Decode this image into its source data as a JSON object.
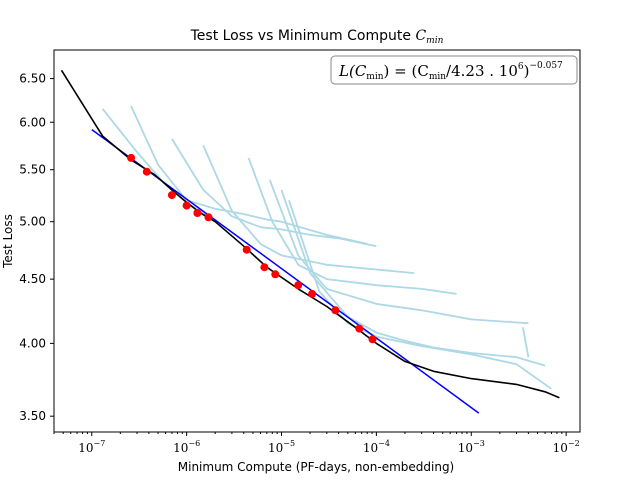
{
  "chart_data": {
    "type": "line",
    "title": "Test Loss vs Minimum Compute",
    "title_symbol": {
      "main": "C",
      "sub": "min"
    },
    "xlabel": "Minimum Compute (PF-days, non-embedding)",
    "ylabel": "Test Loss",
    "x_scale": "log",
    "y_scale": "log",
    "xlim": [
      4e-08,
      0.014
    ],
    "ylim": [
      3.4,
      6.85
    ],
    "x_ticks": [
      {
        "value": 1e-07,
        "label": "10",
        "exp": "−7"
      },
      {
        "value": 1e-06,
        "label": "10",
        "exp": "−6"
      },
      {
        "value": 1e-05,
        "label": "10",
        "exp": "−5"
      },
      {
        "value": 0.0001,
        "label": "10",
        "exp": "−4"
      },
      {
        "value": 0.001,
        "label": "10",
        "exp": "−3"
      },
      {
        "value": 0.01,
        "label": "10",
        "exp": "−2"
      }
    ],
    "y_ticks": [
      {
        "value": 3.5,
        "label": "3.50"
      },
      {
        "value": 4.0,
        "label": "4.00"
      },
      {
        "value": 4.5,
        "label": "4.50"
      },
      {
        "value": 5.0,
        "label": "5.00"
      },
      {
        "value": 5.5,
        "label": "5.50"
      },
      {
        "value": 6.0,
        "label": "6.00"
      },
      {
        "value": 6.5,
        "label": "6.50"
      }
    ],
    "legend": {
      "position": "top-right",
      "text": {
        "lhs": "L(C",
        "lhs_sub": "min",
        "eq": ") = (C",
        "rhs_sub": "min",
        "rest": "/4.23 . 10",
        "pow": "6",
        "close": ")",
        "exp": "−0.057"
      }
    },
    "grid": false,
    "colors": {
      "envelope": "#000000",
      "fit": "#0000ff",
      "points": "#ff0000",
      "runs": "#add8e6"
    },
    "series": [
      {
        "role": "frontier",
        "x": [
          4.8e-08,
          1.3e-07,
          2.6e-07,
          4.6e-07,
          7e-07,
          1e-06,
          1.4e-06,
          2e-06,
          4e-06,
          7e-06,
          1.5e-05,
          3e-05,
          6e-05,
          0.0001,
          0.0002,
          0.0004,
          0.001,
          0.003,
          0.006,
          0.0085
        ],
        "y": [
          6.6,
          5.85,
          5.6,
          5.45,
          5.3,
          5.18,
          5.08,
          5.0,
          4.78,
          4.6,
          4.42,
          4.28,
          4.12,
          4.0,
          3.87,
          3.8,
          3.75,
          3.71,
          3.66,
          3.62
        ]
      },
      {
        "role": "fit",
        "x": [
          1e-07,
          0.0012
        ],
        "y": [
          5.92,
          3.52
        ]
      },
      {
        "role": "points",
        "x": [
          2.6e-07,
          3.8e-07,
          7e-07,
          1e-06,
          1.3e-06,
          1.7e-06,
          4.3e-06,
          6.6e-06,
          8.6e-06,
          1.5e-05,
          2.1e-05,
          3.7e-05,
          6.6e-05,
          9.1e-05
        ],
        "y": [
          5.62,
          5.48,
          5.25,
          5.15,
          5.08,
          5.04,
          4.75,
          4.6,
          4.54,
          4.45,
          4.38,
          4.25,
          4.11,
          4.03
        ]
      }
    ],
    "runs": [
      {
        "x": [
          1.3e-07,
          3e-07,
          6e-07,
          1e-06,
          1.7e-06
        ],
        "y": [
          6.15,
          5.68,
          5.35,
          5.18,
          5.05
        ]
      },
      {
        "x": [
          2.6e-07,
          5e-07,
          1e-06,
          2e-06,
          4e-06,
          7e-06,
          1e-05,
          3e-05,
          8e-05
        ],
        "y": [
          6.18,
          5.55,
          5.2,
          5.12,
          5.07,
          5.02,
          5.0,
          4.88,
          4.8
        ]
      },
      {
        "x": [
          7e-07,
          1.5e-06,
          3e-06,
          6e-06,
          1e-05,
          2e-05,
          4e-05,
          0.0001
        ],
        "y": [
          5.82,
          5.3,
          5.05,
          4.95,
          4.93,
          4.88,
          4.85,
          4.78
        ]
      },
      {
        "x": [
          1.5e-06,
          3e-06,
          6e-06,
          1e-05,
          3e-05,
          0.0001,
          0.00025
        ],
        "y": [
          5.75,
          5.1,
          4.8,
          4.7,
          4.62,
          4.58,
          4.55
        ]
      },
      {
        "x": [
          4.5e-06,
          8e-06,
          1.5e-05,
          3e-05,
          0.0001,
          0.0003,
          0.0007
        ],
        "y": [
          5.62,
          5.0,
          4.62,
          4.5,
          4.45,
          4.42,
          4.38
        ]
      },
      {
        "x": [
          7.5e-06,
          1.5e-05,
          3e-05,
          0.0001,
          0.0003,
          0.001,
          0.004
        ],
        "y": [
          5.4,
          4.7,
          4.42,
          4.3,
          4.25,
          4.18,
          4.15
        ]
      },
      {
        "x": [
          1e-05,
          2e-05,
          5e-05,
          0.0001,
          0.0002,
          0.0004,
          0.001,
          0.003,
          0.006
        ],
        "y": [
          5.3,
          4.55,
          4.2,
          4.08,
          4.02,
          3.97,
          3.93,
          3.9,
          3.84
        ]
      },
      {
        "x": [
          1.2e-05,
          2.5e-05,
          5e-05,
          0.0001,
          0.0003,
          0.001,
          0.003,
          0.007
        ],
        "y": [
          5.2,
          4.4,
          4.15,
          4.05,
          3.98,
          3.92,
          3.85,
          3.68
        ]
      },
      {
        "x": [
          0.0035,
          0.004
        ],
        "y": [
          4.12,
          3.9
        ]
      }
    ]
  }
}
